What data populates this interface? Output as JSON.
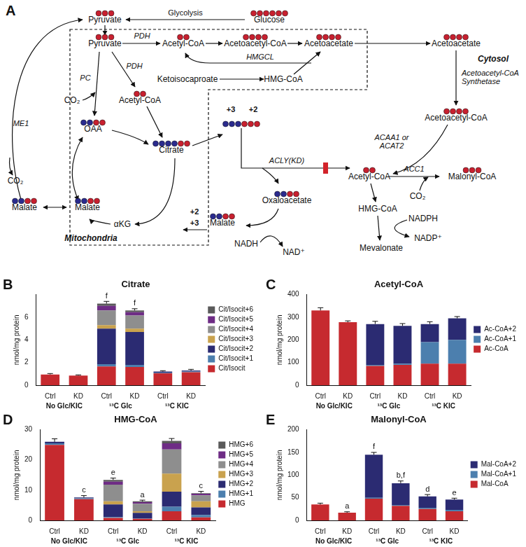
{
  "diagram": {
    "panel": "A",
    "compartments": {
      "cytosol": "Cytosol",
      "mitochondria": "Mitochondria"
    },
    "nodes": {
      "glucose": {
        "label": "Glucose",
        "carbons": 6
      },
      "pyr_c": {
        "label": "Pyruvate",
        "carbons": 3
      },
      "pyr_m": {
        "label": "Pyruvate",
        "carbons": 3
      },
      "acoa_m1": {
        "label": "Acetyl-CoA",
        "carbons": 2
      },
      "aacoa_m": {
        "label": "Acetoacetyl-CoA",
        "carbons": 4
      },
      "aa_m": {
        "label": "Acetoacetate",
        "carbons": 4
      },
      "aa_c": {
        "label": "Acetoacetate",
        "carbons": 4
      },
      "kic": {
        "label": "Ketoisocaproate"
      },
      "hmg_m": {
        "label": "HMG-CoA"
      },
      "co2_m": {
        "label": "CO₂"
      },
      "acoa_m2": {
        "label": "Acetyl-CoA",
        "carbons": 2
      },
      "oaa": {
        "label": "OAA",
        "carbons": 4,
        "labeled": 2
      },
      "cit_m": {
        "label": "Citrate",
        "carbons": 6,
        "labeled": 4
      },
      "mal_m": {
        "label": "Malate",
        "carbons": 4,
        "labeled": 2
      },
      "akg": {
        "label": "αKG"
      },
      "mal_l": {
        "label": "Malate",
        "carbons": 4,
        "labeled": 2
      },
      "co2_l": {
        "label": "CO₂"
      },
      "cit_c": {
        "carbons": 6,
        "labeled": 3,
        "tags": [
          "+3",
          "+2"
        ]
      },
      "aacoa_c": {
        "label": "Acetoacetyl-CoA",
        "carbons": 4
      },
      "acoa_c": {
        "label": "Acetyl-CoA",
        "carbons": 2
      },
      "malcoa": {
        "label": "Malonyl-CoA",
        "carbons": 3
      },
      "co2_c": {
        "label": "CO₂"
      },
      "oaa_c": {
        "label": "Oxaloacetate",
        "carbons": 4,
        "labeled": 2
      },
      "mal_c": {
        "label": "Malate",
        "carbons": 4,
        "labeled": 2,
        "tags": [
          "+2",
          "+3"
        ]
      },
      "hmg_c": {
        "label": "HMG-CoA"
      },
      "nadph": {
        "label": "NADPH"
      },
      "nadp": {
        "label": "NADP⁺"
      },
      "mev": {
        "label": "Mevalonate"
      },
      "nadh": {
        "label": "NADH"
      },
      "nad": {
        "label": "NAD⁺"
      }
    },
    "enzymes": {
      "glycolysis": "Glycolysis",
      "pdh1": "PDH",
      "pdh2": "PDH",
      "pc": "PC",
      "hmgcl": "HMGCL",
      "me1": "ME1",
      "aacs": "Acetoacetyl-CoA Synthetase",
      "acaa": "ACAA1 or ACAT2",
      "acly": "ACLY(KD)",
      "acc1": "ACC1"
    }
  },
  "chart_data": [
    {
      "panel": "B",
      "type": "bar",
      "stacked": true,
      "title": "Citrate",
      "y_label": "nmol/mg protein",
      "categories": [
        "Ctrl",
        "KD",
        "Ctrl",
        "KD",
        "Ctrl",
        "KD"
      ],
      "groups": [
        "No Glc/KIC",
        "¹³C Glc",
        "¹³C KIC"
      ],
      "series": [
        {
          "name": "Cit/Isocit",
          "color": "#c62a2f",
          "values": [
            0.95,
            0.85,
            1.65,
            1.6,
            1.05,
            1.15
          ]
        },
        {
          "name": "Cit/Isocit+1",
          "color": "#4c7fae",
          "values": [
            0,
            0,
            0.2,
            0.2,
            0.05,
            0.05
          ]
        },
        {
          "name": "Cit/Isocit+2",
          "color": "#2b2b72",
          "values": [
            0,
            0,
            3.15,
            2.9,
            0.1,
            0.1
          ]
        },
        {
          "name": "Cit/Isocit+3",
          "color": "#c9a24e",
          "values": [
            0,
            0,
            0.3,
            0.3,
            0,
            0
          ]
        },
        {
          "name": "Cit/Isocit+4",
          "color": "#8e8e8e",
          "values": [
            0,
            0,
            1.3,
            1.15,
            0,
            0
          ]
        },
        {
          "name": "Cit/Isocit+5",
          "color": "#6e2c85",
          "values": [
            0,
            0,
            0.4,
            0.3,
            0,
            0
          ]
        },
        {
          "name": "Cit/Isocit+6",
          "color": "#5a5a5a",
          "values": [
            0,
            0,
            0.2,
            0.15,
            0,
            0
          ]
        }
      ],
      "errors": [
        0.08,
        0.06,
        0.2,
        0.15,
        0.08,
        0.1
      ],
      "letters": [
        null,
        null,
        "f",
        "f",
        null,
        null
      ],
      "ylim": [
        0,
        8
      ],
      "yticks": [
        0,
        2,
        4,
        6
      ],
      "legend": "right",
      "grid": false
    },
    {
      "panel": "C",
      "type": "bar",
      "stacked": true,
      "title": "Acetyl-CoA",
      "y_label": "nmol/mg protein",
      "categories": [
        "Ctrl",
        "KD",
        "Ctrl",
        "KD",
        "Ctrl",
        "KD"
      ],
      "groups": [
        "No Glc/KIC",
        "¹³C Glc",
        "¹³C KIC"
      ],
      "series": [
        {
          "name": "Ac-CoA",
          "color": "#c62a2f",
          "values": [
            330,
            278,
            85,
            90,
            95,
            95
          ]
        },
        {
          "name": "Ac-CoA+1",
          "color": "#4c7fae",
          "values": [
            0,
            0,
            5,
            5,
            95,
            105
          ]
        },
        {
          "name": "Ac-CoA+2",
          "color": "#2b2b72",
          "values": [
            0,
            0,
            180,
            167,
            80,
            95
          ]
        }
      ],
      "errors": [
        12,
        6,
        12,
        10,
        10,
        8
      ],
      "letters": [
        null,
        null,
        null,
        null,
        null,
        null
      ],
      "ylim": [
        0,
        400
      ],
      "yticks": [
        0,
        100,
        200,
        300,
        400
      ],
      "legend": "right",
      "grid": false
    },
    {
      "panel": "D",
      "type": "bar",
      "stacked": true,
      "title": "HMG-CoA",
      "y_label": "nmol/mg protein",
      "categories": [
        "Ctrl",
        "KD",
        "Ctrl",
        "KD",
        "Ctrl",
        "KD"
      ],
      "groups": [
        "No Glc/KIC",
        "¹³C Glc",
        "¹³C KIC"
      ],
      "series": [
        {
          "name": "HMG",
          "color": "#c62a2f",
          "values": [
            25,
            7,
            0.8,
            0.5,
            3,
            1
          ]
        },
        {
          "name": "HMG+1",
          "color": "#4c7fae",
          "values": [
            0.5,
            0.3,
            0.3,
            0.2,
            1.5,
            0.8
          ]
        },
        {
          "name": "HMG+2",
          "color": "#2b2b72",
          "values": [
            0.5,
            0.3,
            4.2,
            1.8,
            5,
            2.5
          ]
        },
        {
          "name": "HMG+3",
          "color": "#c9a24e",
          "values": [
            0,
            0,
            1,
            0.5,
            6,
            2
          ]
        },
        {
          "name": "HMG+4",
          "color": "#8e8e8e",
          "values": [
            0,
            0,
            5.5,
            2.5,
            8,
            2
          ]
        },
        {
          "name": "HMG+5",
          "color": "#6e2c85",
          "values": [
            0,
            0,
            1,
            0.5,
            2,
            0.5
          ]
        },
        {
          "name": "HMG+6",
          "color": "#5a5a5a",
          "values": [
            0,
            0,
            0.6,
            0.3,
            0.8,
            0.2
          ]
        }
      ],
      "errors": [
        1,
        0.6,
        0.6,
        0.4,
        0.8,
        0.6
      ],
      "letters": [
        null,
        "c",
        "e",
        "a",
        null,
        "c"
      ],
      "ylim": [
        0,
        30
      ],
      "yticks": [
        0,
        10,
        20,
        30
      ],
      "legend": "right",
      "grid": false
    },
    {
      "panel": "E",
      "type": "bar",
      "stacked": true,
      "title": "Malonyl-CoA",
      "y_label": "nmol/mg protein",
      "categories": [
        "Ctrl",
        "KD",
        "Ctrl",
        "KD",
        "Ctrl",
        "KD"
      ],
      "groups": [
        "No Glc/KIC",
        "¹³C Glc",
        "¹³C KIC"
      ],
      "series": [
        {
          "name": "Mal-CoA",
          "color": "#c62a2f",
          "values": [
            35,
            17,
            48,
            32,
            25,
            20
          ]
        },
        {
          "name": "Mal-CoA+1",
          "color": "#4c7fae",
          "values": [
            0,
            0,
            2,
            2,
            3,
            3
          ]
        },
        {
          "name": "Mal-CoA+2",
          "color": "#2b2b72",
          "values": [
            0,
            0,
            95,
            48,
            25,
            23
          ]
        }
      ],
      "errors": [
        3,
        2,
        5,
        5,
        4,
        3
      ],
      "letters": [
        null,
        "a",
        "f",
        "b,f",
        "d",
        "e"
      ],
      "ylim": [
        0,
        200
      ],
      "yticks": [
        0,
        50,
        100,
        150,
        200
      ],
      "legend": "right",
      "grid": false
    }
  ]
}
